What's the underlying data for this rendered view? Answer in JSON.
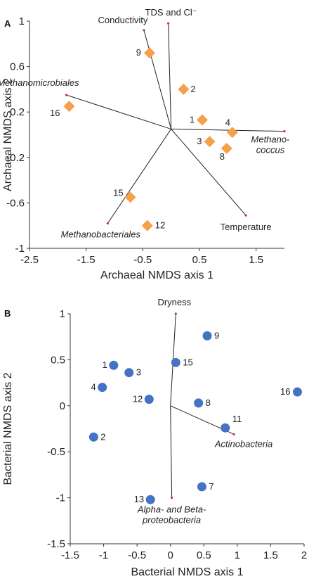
{
  "chart_data": [
    {
      "panel_label": "A",
      "type": "scatter",
      "xlabel": "Archaeal NMDS axis 1",
      "ylabel": "Archaeal NMDS axis 2",
      "xlim": [
        -2.5,
        2.0
      ],
      "ylim": [
        -1.0,
        1.0
      ],
      "xticks": [
        "-2.5",
        "-1.5",
        "-0.5",
        "0.5",
        "1.5"
      ],
      "xtick_values": [
        -2.5,
        -1.5,
        -0.5,
        0.5,
        1.5
      ],
      "yticks": [
        "1",
        "0.6",
        "0.2",
        "-0.2",
        "-0.6",
        "-1"
      ],
      "ytick_values": [
        1.0,
        0.6,
        0.2,
        -0.2,
        -0.6,
        -1.0
      ],
      "marker": "diamond",
      "color": "#f5a04a",
      "points": [
        {
          "label": "9",
          "x": -0.38,
          "y": 0.72
        },
        {
          "label": "2",
          "x": 0.22,
          "y": 0.4
        },
        {
          "label": "16",
          "x": -1.8,
          "y": 0.25
        },
        {
          "label": "1",
          "x": 0.55,
          "y": 0.13
        },
        {
          "label": "4",
          "x": 1.08,
          "y": 0.02
        },
        {
          "label": "3",
          "x": 0.68,
          "y": -0.06
        },
        {
          "label": "8",
          "x": 0.98,
          "y": -0.12
        },
        {
          "label": "15",
          "x": -0.72,
          "y": -0.55
        },
        {
          "label": "12",
          "x": -0.42,
          "y": -0.8
        }
      ],
      "origin": [
        0.0,
        0.05
      ],
      "vectors": [
        {
          "label": "Conductivity",
          "italic": false,
          "x": -0.48,
          "y": 0.92,
          "label_pos": "above"
        },
        {
          "label": "TDS and Cl⁻",
          "italic": false,
          "x": -0.05,
          "y": 0.98,
          "label_pos": "above"
        },
        {
          "label": "Methanomicrobiales",
          "italic": true,
          "x": -1.85,
          "y": 0.35,
          "label_pos": "above"
        },
        {
          "label": "Methano-|coccus",
          "italic": true,
          "x": 2.0,
          "y": 0.03,
          "label_pos": "below"
        },
        {
          "label": "Temperature",
          "italic": false,
          "x": 1.32,
          "y": -0.71,
          "label_pos": "below"
        },
        {
          "label": "Methanobacteriales",
          "italic": true,
          "x": -1.12,
          "y": -0.78,
          "label_pos": "below"
        }
      ]
    },
    {
      "panel_label": "B",
      "type": "scatter",
      "xlabel": "Bacterial NMDS axis 1",
      "ylabel": "Bacterial NMDS axis 2",
      "xlim": [
        -1.5,
        2.0
      ],
      "ylim": [
        -1.5,
        1.0
      ],
      "xticks": [
        "-1.5",
        "-1",
        "-0.5",
        "0",
        "0.5",
        "1",
        "1.5",
        "2"
      ],
      "xtick_values": [
        -1.5,
        -1.0,
        -0.5,
        0.0,
        0.5,
        1.0,
        1.5,
        2.0
      ],
      "yticks": [
        "1",
        "0.5",
        "0",
        "-0.5",
        "-1",
        "-1.5"
      ],
      "ytick_values": [
        1.0,
        0.5,
        0.0,
        -0.5,
        -1.0,
        -1.5
      ],
      "marker": "circle",
      "color": "#4472c4",
      "points": [
        {
          "label": "9",
          "x": 0.55,
          "y": 0.76
        },
        {
          "label": "1",
          "x": -0.85,
          "y": 0.44
        },
        {
          "label": "3",
          "x": -0.62,
          "y": 0.36
        },
        {
          "label": "15",
          "x": 0.08,
          "y": 0.47
        },
        {
          "label": "4",
          "x": -1.02,
          "y": 0.2
        },
        {
          "label": "12",
          "x": -0.32,
          "y": 0.07
        },
        {
          "label": "8",
          "x": 0.42,
          "y": 0.03
        },
        {
          "label": "16",
          "x": 1.9,
          "y": 0.15
        },
        {
          "label": "11",
          "x": 0.82,
          "y": -0.24
        },
        {
          "label": "2",
          "x": -1.15,
          "y": -0.34
        },
        {
          "label": "7",
          "x": 0.47,
          "y": -0.88
        },
        {
          "label": "13",
          "x": -0.3,
          "y": -1.02
        }
      ],
      "origin": [
        0.0,
        0.0
      ],
      "vectors": [
        {
          "label": "Dryness",
          "italic": false,
          "x": 0.08,
          "y": 1.0,
          "label_pos": "above"
        },
        {
          "label": "Actinobacteria",
          "italic": true,
          "x": 0.95,
          "y": -0.31,
          "label_pos": "below"
        },
        {
          "label": "Alpha- and Beta-|proteobacteria",
          "italic": true,
          "x": 0.02,
          "y": -1.0,
          "label_pos": "below"
        }
      ]
    }
  ]
}
